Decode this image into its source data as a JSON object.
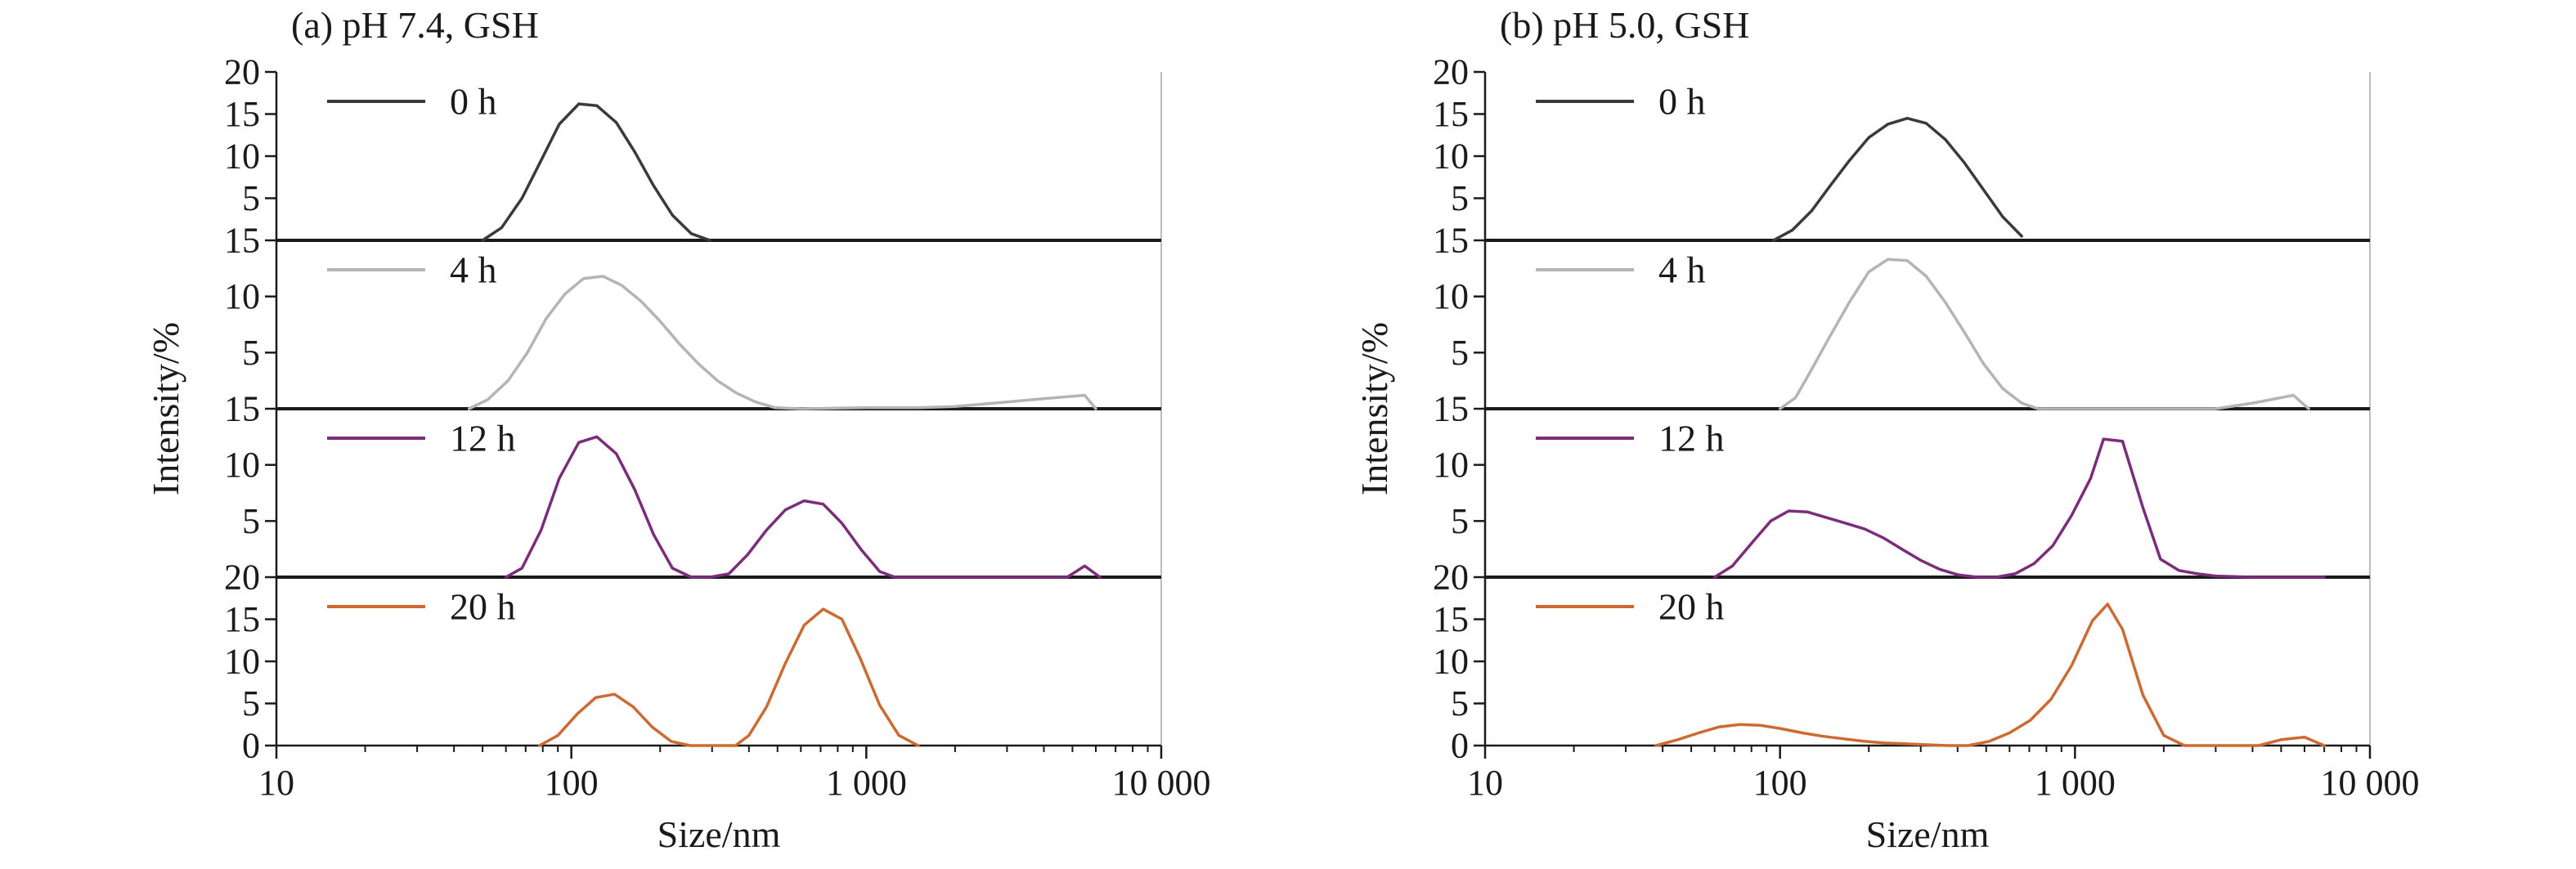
{
  "chart_data": [
    {
      "type": "line",
      "title": "(a) pH 7.4, GSH",
      "xlabel": "Size/nm",
      "ylabel": "Intensity/%",
      "xscale": "log",
      "xlim": [
        10,
        10000
      ],
      "x_tick_labels": [
        "10",
        "100",
        "1 000",
        "10 000"
      ],
      "panels": [
        {
          "name": "0 h",
          "color": "#3a3a3a",
          "ylim": [
            0,
            20
          ],
          "y_tick_labels": [
            "5",
            "10",
            "15",
            "20"
          ],
          "x": [
            50,
            58,
            68,
            79,
            91,
            106,
            122,
            142,
            164,
            190,
            220,
            255,
            295
          ],
          "y": [
            0,
            1.5,
            5,
            9.5,
            13.8,
            16.2,
            16,
            14,
            10.5,
            6.5,
            3,
            0.8,
            0
          ]
        },
        {
          "name": "4 h",
          "color": "#b4b4b4",
          "ylim": [
            0,
            15
          ],
          "y_tick_labels": [
            "5",
            "10",
            "15"
          ],
          "x": [
            45,
            52,
            61,
            71,
            82,
            95,
            110,
            128,
            148,
            172,
            200,
            232,
            270,
            313,
            363,
            422,
            490,
            600,
            1000,
            1500,
            2000,
            3000,
            4000,
            5500,
            6000
          ],
          "y": [
            0,
            0.8,
            2.5,
            5,
            8,
            10.2,
            11.6,
            11.8,
            11,
            9.6,
            7.8,
            5.8,
            4,
            2.5,
            1.4,
            0.6,
            0.1,
            0,
            0.1,
            0.1,
            0.2,
            0.6,
            0.9,
            1.2,
            0
          ]
        },
        {
          "name": "12 h",
          "color": "#7b2d7b",
          "ylim": [
            0,
            15
          ],
          "y_tick_labels": [
            "5",
            "10",
            "15"
          ],
          "x": [
            60,
            68,
            79,
            91,
            106,
            122,
            142,
            164,
            190,
            220,
            255,
            295,
            342,
            396,
            459,
            532,
            616,
            714,
            827,
            958,
            1110,
            1250,
            4800,
            5500,
            6200
          ],
          "y": [
            0,
            0.8,
            4.2,
            8.8,
            12,
            12.5,
            11,
            7.8,
            3.8,
            0.8,
            0,
            0,
            0.3,
            2,
            4.2,
            6,
            6.8,
            6.5,
            4.8,
            2.5,
            0.5,
            0,
            0,
            1,
            0
          ]
        },
        {
          "name": "20 h",
          "color": "#cc6a32",
          "ylim": [
            0,
            20
          ],
          "y_tick_labels": [
            "0",
            "5",
            "10",
            "15",
            "20"
          ],
          "x": [
            78,
            90,
            105,
            121,
            140,
            162,
            188,
            218,
            253,
            360,
            400,
            459,
            532,
            616,
            714,
            827,
            958,
            1110,
            1290,
            1500
          ],
          "y": [
            0,
            1.2,
            3.8,
            5.7,
            6.1,
            4.6,
            2.2,
            0.5,
            0,
            0,
            1.2,
            4.6,
            9.8,
            14.3,
            16.2,
            15,
            10.2,
            4.8,
            1.2,
            0
          ]
        }
      ]
    },
    {
      "type": "line",
      "title": "(b) pH 5.0, GSH",
      "xlabel": "Size/nm",
      "ylabel": "Intensity/%",
      "xscale": "log",
      "xlim": [
        10,
        10000
      ],
      "x_tick_labels": [
        "10",
        "100",
        "1 000",
        "10 000"
      ],
      "panels": [
        {
          "name": "0 h",
          "color": "#3a3a3a",
          "ylim": [
            0,
            20
          ],
          "y_tick_labels": [
            "5",
            "10",
            "15",
            "20"
          ],
          "x": [
            95,
            110,
            128,
            148,
            172,
            200,
            232,
            270,
            313,
            363,
            422,
            490,
            569,
            660
          ],
          "y": [
            0,
            1.2,
            3.5,
            6.5,
            9.5,
            12.2,
            13.8,
            14.5,
            13.9,
            12,
            9.2,
            6,
            2.8,
            0.5
          ]
        },
        {
          "name": "4 h",
          "color": "#b4b4b4",
          "ylim": [
            0,
            15
          ],
          "y_tick_labels": [
            "5",
            "10",
            "15"
          ],
          "x": [
            100,
            113,
            128,
            148,
            172,
            200,
            232,
            270,
            313,
            363,
            422,
            490,
            569,
            660,
            750,
            3000,
            4000,
            5500,
            6200
          ],
          "y": [
            0,
            1,
            3.5,
            6.5,
            9.5,
            12.2,
            13.3,
            13.2,
            11.8,
            9.5,
            6.8,
            4,
            1.8,
            0.5,
            0,
            0,
            0.5,
            1.2,
            0
          ]
        },
        {
          "name": "12 h",
          "color": "#7b2d7b",
          "ylim": [
            0,
            15
          ],
          "y_tick_labels": [
            "5",
            "10",
            "15"
          ],
          "x": [
            60,
            69,
            80,
            93,
            107,
            124,
            144,
            167,
            193,
            224,
            259,
            300,
            348,
            403,
            467,
            541,
            626,
            726,
            841,
            974,
            1130,
            1250,
            1450,
            1700,
            1950,
            2250,
            2600,
            3000,
            4000,
            5500,
            7000
          ],
          "y": [
            0,
            1,
            3,
            5,
            5.9,
            5.8,
            5.3,
            4.8,
            4.3,
            3.5,
            2.5,
            1.5,
            0.7,
            0.2,
            0,
            0,
            0.3,
            1.2,
            2.8,
            5.5,
            8.8,
            12.3,
            12.1,
            6.2,
            1.6,
            0.6,
            0.3,
            0.1,
            0,
            0,
            0
          ]
        },
        {
          "name": "20 h",
          "color": "#cc6a32",
          "ylim": [
            0,
            20
          ],
          "y_tick_labels": [
            "0",
            "5",
            "10",
            "15",
            "20"
          ],
          "x": [
            38,
            45,
            53,
            62,
            73,
            86,
            101,
            119,
            140,
            165,
            194,
            228,
            268,
            315,
            370,
            435,
            511,
            600,
            705,
            829,
            974,
            1145,
            1290,
            1450,
            1700,
            2000,
            2350,
            4200,
            5000,
            6000,
            7000
          ],
          "y": [
            0,
            0.7,
            1.5,
            2.2,
            2.5,
            2.4,
            2,
            1.5,
            1.1,
            0.8,
            0.5,
            0.3,
            0.2,
            0.1,
            0,
            0,
            0.5,
            1.5,
            3,
            5.5,
            9.5,
            14.8,
            16.8,
            13.8,
            6,
            1.2,
            0,
            0,
            0.7,
            1,
            0
          ]
        }
      ]
    }
  ]
}
